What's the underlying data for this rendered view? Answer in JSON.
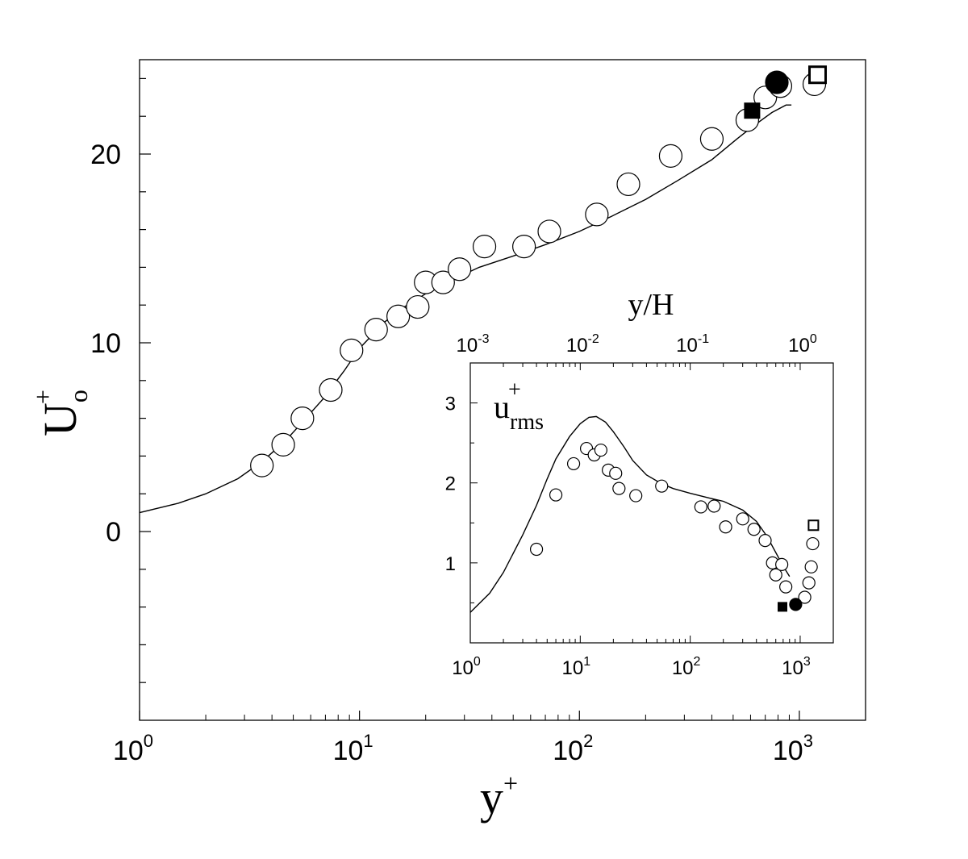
{
  "chart_data": [
    {
      "type": "scatter",
      "panel": "main",
      "xscale": "log",
      "xlim": [
        1,
        2000
      ],
      "ylim": [
        -10,
        25
      ],
      "xlabel": "y",
      "xlabel_sup": "+",
      "ylabel": "U",
      "ylabel_sub": "o",
      "ylabel_sup": "+",
      "xticks": [
        {
          "value": 1,
          "base": "10",
          "exp": "0"
        },
        {
          "value": 10,
          "base": "10",
          "exp": "1"
        },
        {
          "value": 100,
          "base": "10",
          "exp": "2"
        },
        {
          "value": 1000,
          "base": "10",
          "exp": "3"
        }
      ],
      "yticks": [
        {
          "value": 0,
          "label": "0"
        },
        {
          "value": 10,
          "label": "10"
        },
        {
          "value": 20,
          "label": "20"
        }
      ],
      "grid": false,
      "series": [
        {
          "marker": "open-circle",
          "points": [
            [
              3.6,
              3.5
            ],
            [
              4.5,
              4.6
            ],
            [
              5.5,
              6.0
            ],
            [
              7.4,
              7.5
            ],
            [
              9.2,
              9.6
            ],
            [
              11.9,
              10.7
            ],
            [
              15.0,
              11.4
            ],
            [
              18.4,
              11.9
            ],
            [
              20.0,
              13.2
            ],
            [
              24.0,
              13.2
            ],
            [
              28.5,
              13.9
            ],
            [
              37.0,
              15.1
            ],
            [
              56.0,
              15.1
            ],
            [
              73.0,
              15.9
            ],
            [
              120.0,
              16.8
            ],
            [
              167.0,
              18.4
            ],
            [
              260.0,
              19.9
            ],
            [
              400.0,
              20.8
            ],
            [
              580.0,
              21.8
            ],
            [
              700.0,
              23.0
            ],
            [
              820.0,
              23.6
            ],
            [
              1170.0,
              23.7
            ]
          ]
        },
        {
          "marker": "filled-square",
          "points": [
            [
              610.0,
              22.3
            ]
          ]
        },
        {
          "marker": "filled-circle",
          "points": [
            [
              790.0,
              23.8
            ]
          ]
        },
        {
          "marker": "open-square",
          "points": [
            [
              1210.0,
              24.2
            ]
          ]
        },
        {
          "marker": "line",
          "points": [
            [
              1,
              1.0
            ],
            [
              1.5,
              1.5
            ],
            [
              2,
              2.0
            ],
            [
              2.8,
              2.8
            ],
            [
              3.6,
              3.7
            ],
            [
              4.6,
              4.8
            ],
            [
              5.5,
              5.8
            ],
            [
              6.8,
              7.0
            ],
            [
              8.5,
              8.5
            ],
            [
              10,
              9.7
            ],
            [
              13,
              11.1
            ],
            [
              16,
              11.9
            ],
            [
              20,
              12.6
            ],
            [
              26,
              13.3
            ],
            [
              35,
              14.0
            ],
            [
              50,
              14.6
            ],
            [
              70,
              15.2
            ],
            [
              100,
              15.9
            ],
            [
              140,
              16.7
            ],
            [
              200,
              17.6
            ],
            [
              280,
              18.6
            ],
            [
              400,
              19.7
            ],
            [
              520,
              20.8
            ],
            [
              620,
              21.5
            ],
            [
              750,
              22.2
            ],
            [
              870,
              22.6
            ],
            [
              920,
              22.6
            ]
          ]
        }
      ]
    },
    {
      "type": "scatter",
      "panel": "inset",
      "xscale": "log",
      "xlim": [
        1,
        2000
      ],
      "ylim": [
        0,
        3.5
      ],
      "ylabel": "u",
      "ylabel_sub": "rms",
      "ylabel_sup": "+",
      "top_axis_label": "y/H",
      "xticks": [
        {
          "value": 1,
          "base": "10",
          "exp": "0"
        },
        {
          "value": 10,
          "base": "10",
          "exp": "1"
        },
        {
          "value": 100,
          "base": "10",
          "exp": "2"
        },
        {
          "value": 1000,
          "base": "10",
          "exp": "3"
        }
      ],
      "top_xticks": [
        {
          "value": 0.001,
          "base": "10",
          "exp": "-3"
        },
        {
          "value": 0.01,
          "base": "10",
          "exp": "-2"
        },
        {
          "value": 0.1,
          "base": "10",
          "exp": "-1"
        },
        {
          "value": 1,
          "base": "10",
          "exp": "0"
        }
      ],
      "top_scale_factor": 1000,
      "yticks": [
        {
          "value": 1,
          "label": "1"
        },
        {
          "value": 2,
          "label": "2"
        },
        {
          "value": 3,
          "label": "3"
        }
      ],
      "grid": false,
      "series": [
        {
          "marker": "open-circle",
          "points": [
            [
              4.0,
              1.17
            ],
            [
              6.0,
              1.85
            ],
            [
              8.7,
              2.24
            ],
            [
              11.4,
              2.43
            ],
            [
              13.4,
              2.35
            ],
            [
              15.4,
              2.41
            ],
            [
              18.0,
              2.16
            ],
            [
              21.0,
              2.12
            ],
            [
              22.5,
              1.93
            ],
            [
              32.0,
              1.84
            ],
            [
              55.0,
              1.96
            ],
            [
              125.0,
              1.7
            ],
            [
              165.0,
              1.71
            ],
            [
              210.0,
              1.45
            ],
            [
              300.0,
              1.55
            ],
            [
              380.0,
              1.42
            ],
            [
              480.0,
              1.28
            ],
            [
              560.0,
              1.0
            ],
            [
              600.0,
              0.85
            ],
            [
              680.0,
              0.98
            ],
            [
              740.0,
              0.7
            ],
            [
              1100.0,
              0.57
            ],
            [
              1200.0,
              0.75
            ],
            [
              1260.0,
              0.95
            ],
            [
              1300.0,
              1.24
            ]
          ]
        },
        {
          "marker": "filled-square",
          "points": [
            [
              690.0,
              0.45
            ]
          ]
        },
        {
          "marker": "filled-circle",
          "points": [
            [
              910.0,
              0.48
            ]
          ]
        },
        {
          "marker": "open-square",
          "points": [
            [
              1320.0,
              1.47
            ]
          ]
        },
        {
          "marker": "line",
          "points": [
            [
              1,
              0.38
            ],
            [
              1.5,
              0.62
            ],
            [
              2,
              0.88
            ],
            [
              3,
              1.35
            ],
            [
              4,
              1.72
            ],
            [
              5,
              2.05
            ],
            [
              6,
              2.3
            ],
            [
              8,
              2.58
            ],
            [
              10,
              2.74
            ],
            [
              12,
              2.82
            ],
            [
              14,
              2.83
            ],
            [
              17,
              2.76
            ],
            [
              20,
              2.64
            ],
            [
              25,
              2.45
            ],
            [
              30,
              2.28
            ],
            [
              40,
              2.1
            ],
            [
              55,
              1.99
            ],
            [
              70,
              1.93
            ],
            [
              100,
              1.87
            ],
            [
              150,
              1.81
            ],
            [
              200,
              1.77
            ],
            [
              300,
              1.66
            ],
            [
              400,
              1.52
            ],
            [
              500,
              1.33
            ],
            [
              600,
              1.13
            ],
            [
              700,
              0.96
            ],
            [
              800,
              0.83
            ]
          ]
        }
      ]
    }
  ]
}
